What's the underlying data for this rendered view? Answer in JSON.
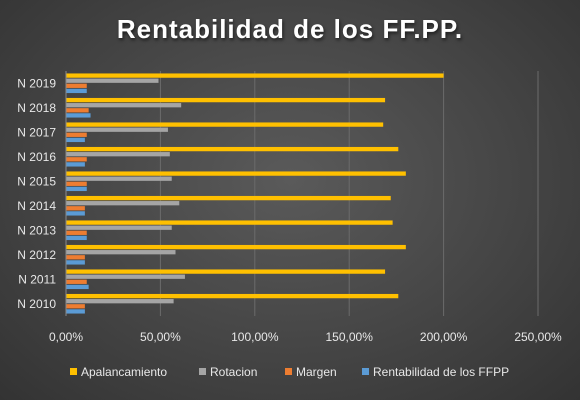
{
  "chart_data": {
    "type": "bar",
    "orientation": "horizontal",
    "title": "Rentabilidad de los FF.PP.",
    "categories": [
      "N 2010",
      "N 2011",
      "N 2012",
      "N 2013",
      "N 2014",
      "N 2015",
      "N 2016",
      "N 2017",
      "N 2018",
      "N 2019"
    ],
    "series": [
      {
        "name": "Apalancamiento",
        "color": "#FFC000",
        "values": [
          1.76,
          1.69,
          1.8,
          1.73,
          1.72,
          1.8,
          1.76,
          1.68,
          1.69,
          2.0
        ]
      },
      {
        "name": "Rotacion",
        "color": "#A5A5A5",
        "values": [
          0.57,
          0.63,
          0.58,
          0.56,
          0.6,
          0.56,
          0.55,
          0.54,
          0.61,
          0.49
        ]
      },
      {
        "name": "Margen",
        "color": "#ED7D31",
        "values": [
          0.1,
          0.11,
          0.1,
          0.11,
          0.1,
          0.11,
          0.11,
          0.11,
          0.12,
          0.11
        ]
      },
      {
        "name": "Rentabilidad de los FFPP",
        "color": "#5B9BD5",
        "values": [
          0.1,
          0.12,
          0.1,
          0.11,
          0.1,
          0.11,
          0.1,
          0.1,
          0.13,
          0.11
        ]
      }
    ],
    "xlim": [
      0,
      2.5
    ],
    "xticks": [
      "0,00%",
      "50,00%",
      "100,00%",
      "150,00%",
      "200,00%",
      "250,00%"
    ],
    "grid": true,
    "legend_position": "bottom"
  }
}
